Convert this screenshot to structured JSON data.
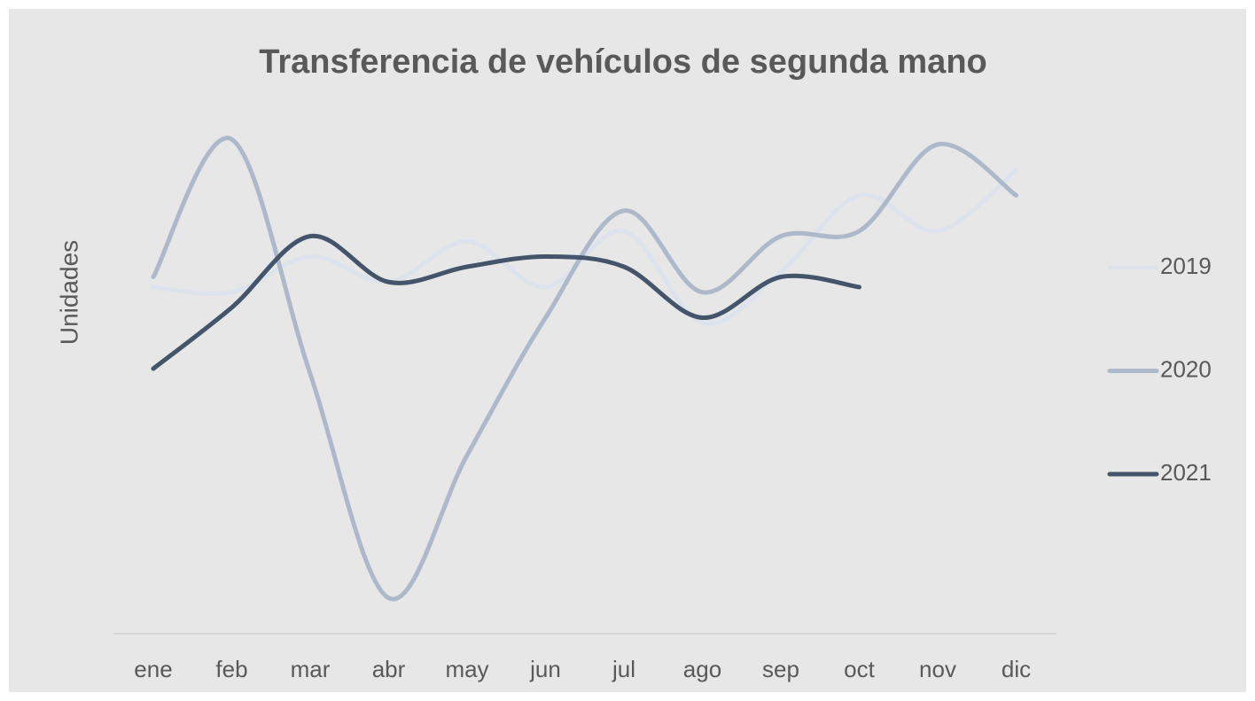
{
  "chart_data": {
    "type": "line",
    "title": "Transferencia de vehículos de segunda mano",
    "y_label": "Unidades",
    "categories": [
      "ene",
      "feb",
      "mar",
      "abr",
      "may",
      "jun",
      "jul",
      "ago",
      "sep",
      "oct",
      "nov",
      "dic"
    ],
    "series": [
      {
        "name": "2019",
        "color": "#dde3ec",
        "values": [
          68,
          67,
          74,
          69,
          77,
          68,
          79,
          61,
          71,
          86,
          79,
          91
        ]
      },
      {
        "name": "2020",
        "color": "#adb9ca",
        "values": [
          70,
          97,
          51,
          7,
          35,
          62,
          83,
          67,
          78,
          79,
          96,
          86
        ]
      },
      {
        "name": "2021",
        "color": "#44546a",
        "values": [
          52,
          64,
          78,
          69,
          72,
          74,
          72,
          62,
          70,
          68,
          null,
          null
        ]
      }
    ],
    "ylim": [
      0,
      100
    ],
    "smooth": true,
    "legend": "right"
  }
}
